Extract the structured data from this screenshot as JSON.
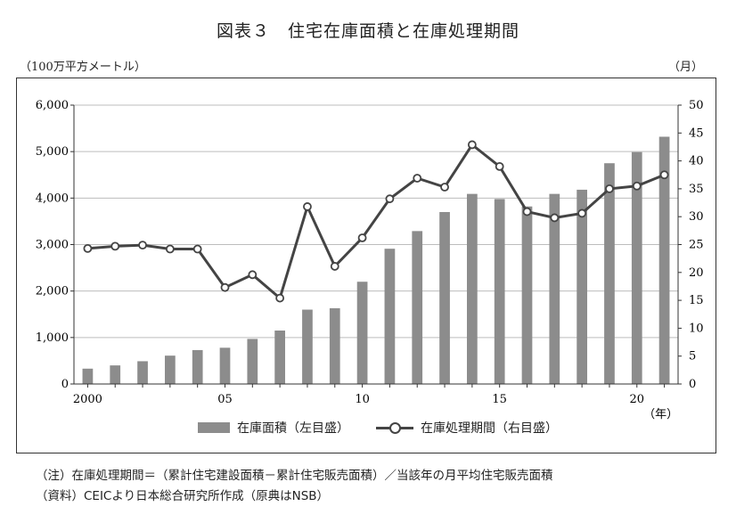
{
  "title": "図表３　住宅在庫面積と在庫処理期間",
  "unit_left": "（100万平方メートル）",
  "unit_right": "（月）",
  "year_unit": "（年）",
  "legend": {
    "bar_label": "在庫面積（左目盛）",
    "line_label": "在庫処理期間（右目盛）"
  },
  "notes": {
    "note": "（注）在庫処理期間＝（累計住宅建設面積－累計住宅販売面積）／当該年の月平均住宅販売面積",
    "source": "（資料）CEICより日本総合研究所作成（原典はNSB）"
  },
  "colors": {
    "bar": "#8c8c8c",
    "line": "#444444"
  },
  "chart_data": {
    "type": "bar+line",
    "x": [
      2000,
      2001,
      2002,
      2003,
      2004,
      2005,
      2006,
      2007,
      2008,
      2009,
      2010,
      2011,
      2012,
      2013,
      2014,
      2015,
      2016,
      2017,
      2018,
      2019,
      2020,
      2021
    ],
    "x_tick_labels": [
      {
        "x": 2000,
        "label": "2000"
      },
      {
        "x": 2005,
        "label": "05"
      },
      {
        "x": 2010,
        "label": "10"
      },
      {
        "x": 2015,
        "label": "15"
      },
      {
        "x": 2020,
        "label": "20"
      }
    ],
    "series": [
      {
        "name": "在庫面積（左目盛）",
        "type": "bar",
        "axis": "left",
        "values": [
          330,
          400,
          490,
          610,
          730,
          780,
          970,
          1150,
          1600,
          1630,
          2200,
          2910,
          3290,
          3700,
          4090,
          3980,
          3820,
          4090,
          4180,
          4750,
          4990,
          5320
        ]
      },
      {
        "name": "在庫処理期間（右目盛）",
        "type": "line",
        "axis": "right",
        "values": [
          24.3,
          24.7,
          24.9,
          24.2,
          24.2,
          17.3,
          19.6,
          15.4,
          31.8,
          21.1,
          26.2,
          33.2,
          36.9,
          35.3,
          42.9,
          39.0,
          30.9,
          29.8,
          30.6,
          35.0,
          35.5,
          37.5
        ]
      }
    ],
    "y_left": {
      "range": [
        0,
        6000
      ],
      "ticks": [
        0,
        1000,
        2000,
        3000,
        4000,
        5000,
        6000
      ],
      "tick_labels": [
        "0",
        "1,000",
        "2,000",
        "3,000",
        "4,000",
        "5,000",
        "6,000"
      ]
    },
    "y_right": {
      "range": [
        0,
        50
      ],
      "ticks": [
        0,
        5,
        10,
        15,
        20,
        25,
        30,
        35,
        40,
        45,
        50
      ],
      "tick_labels": [
        "0",
        "5",
        "10",
        "15",
        "20",
        "25",
        "30",
        "35",
        "40",
        "45",
        "50"
      ]
    },
    "grid": "horizontal",
    "legend_position": "bottom"
  }
}
